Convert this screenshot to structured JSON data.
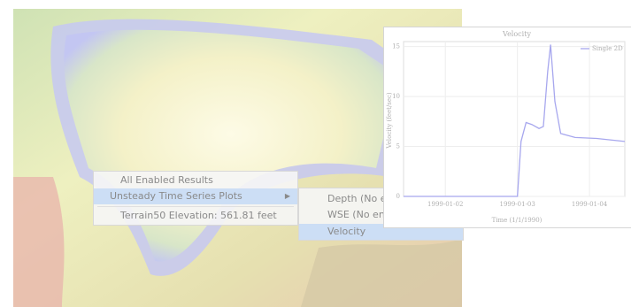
{
  "menu": {
    "items": [
      "All Enabled Results",
      "Unsteady Time Series Plots",
      "Terrain50 Elevation: 561.81 feet"
    ]
  },
  "submenu": {
    "items": [
      "Depth (No en",
      "WSE (No ena",
      "Velocity"
    ]
  },
  "plot": {
    "type": "line",
    "title": "Velocity",
    "ylabel": "Velocity (feet/sec)",
    "xlabel": "Time (1/1/1990)",
    "xlim": [
      1.42,
      4.49
    ],
    "ylim": [
      0,
      15.5
    ],
    "xticks": [
      {
        "value": 2,
        "label": "1999-01-02"
      },
      {
        "value": 3,
        "label": "1999-01-03"
      },
      {
        "value": 4,
        "label": "1999-01-04"
      }
    ],
    "yticks": [
      0,
      5,
      10,
      15
    ],
    "series": [
      {
        "name": "Single 2D",
        "color": "#a7a7ee",
        "x": [
          1.42,
          3.0,
          3.05,
          3.12,
          3.2,
          3.3,
          3.36,
          3.42,
          3.46,
          3.52,
          3.6,
          3.8,
          4.1,
          4.49
        ],
        "values": [
          0,
          0,
          5.5,
          7.4,
          7.2,
          6.8,
          7.0,
          12.5,
          15.2,
          9.5,
          6.3,
          5.9,
          5.8,
          5.5
        ]
      }
    ]
  }
}
